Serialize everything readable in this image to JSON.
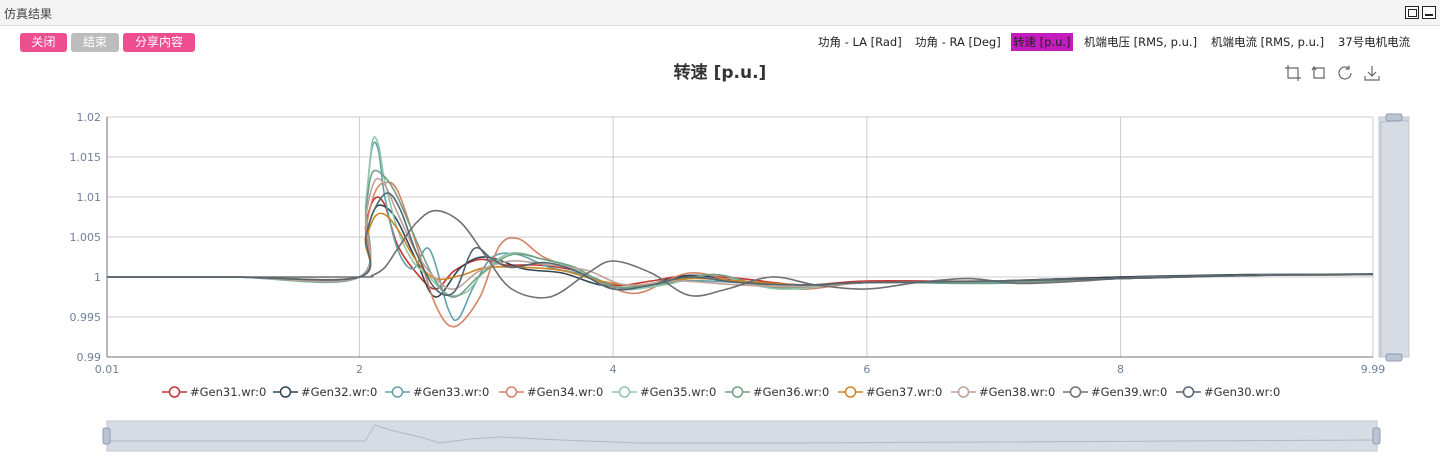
{
  "window": {
    "title": "仿真结果"
  },
  "buttons": {
    "close": "关闭",
    "end": "结束",
    "share": "分享内容"
  },
  "tabs": [
    {
      "label": "功角 - LA [Rad]"
    },
    {
      "label": "功角 - RA [Deg]"
    },
    {
      "label": "转速 [p.u.]",
      "active": true
    },
    {
      "label": "机端电压 [RMS, p.u.]"
    },
    {
      "label": "机端电流 [RMS, p.u.]"
    },
    {
      "label": "37号电机电流"
    }
  ],
  "toolbox": {
    "icons": [
      "zoom-icon",
      "zoom-reset-icon",
      "restore-icon",
      "save-image-icon"
    ]
  },
  "colors": {
    "accent": "#ee4d8f",
    "tab_active": "#c41dbd",
    "disabled": "#bdbdbd"
  },
  "chart_data": {
    "type": "line",
    "title": "转速 [p.u.]",
    "xlim": [
      0.01,
      9.99
    ],
    "ylim": [
      0.99,
      1.02
    ],
    "x_tick_labels": [
      "0.01",
      "2",
      "4",
      "6",
      "8",
      "9.99"
    ],
    "y_tick_labels": [
      "1.02",
      "1.015",
      "1.01",
      "1.005",
      "1",
      "0.995",
      "0.99"
    ],
    "grid": true,
    "legend_position": "bottom",
    "series": [
      {
        "name": "#Gen31.wr:0",
        "color": "#c23531",
        "x": [
          0.01,
          1.0,
          2.0,
          2.05,
          2.12,
          2.2,
          2.3,
          2.45,
          2.6,
          2.75,
          2.95,
          3.15,
          3.4,
          3.7,
          4.0,
          4.3,
          4.6,
          5.0,
          5.5,
          6.0,
          7.0,
          8.0,
          9.0,
          9.99
        ],
        "y": [
          1,
          1,
          1,
          1.0065,
          1.0098,
          1.009,
          1.004,
          1.0005,
          0.9985,
          1.0008,
          1.0022,
          1.0015,
          1.0015,
          1.0008,
          0.999,
          0.9995,
          1.0002,
          0.9998,
          0.999,
          0.9995,
          0.9995,
          1.0,
          1.0002,
          1.0003
        ]
      },
      {
        "name": "#Gen32.wr:0",
        "color": "#2f4554",
        "x": [
          0.01,
          1.0,
          2.0,
          2.05,
          2.12,
          2.2,
          2.3,
          2.45,
          2.6,
          2.8,
          3.0,
          3.3,
          3.6,
          3.9,
          4.2,
          4.6,
          5.0,
          5.5,
          6.0,
          7.0,
          8.0,
          9.0,
          9.99
        ],
        "y": [
          1,
          1,
          1,
          1.005,
          1.0085,
          1.0088,
          1.007,
          1.002,
          0.9975,
          1.0012,
          1.0025,
          1.001,
          1.0005,
          0.999,
          0.9988,
          1.0002,
          0.9995,
          0.999,
          0.9993,
          0.9995,
          1.0,
          1.0003,
          1.0003
        ]
      },
      {
        "name": "#Gen33.wr:0",
        "color": "#61a0a8",
        "x": [
          0.01,
          1.0,
          2.0,
          2.05,
          2.1,
          2.15,
          2.2,
          2.3,
          2.42,
          2.55,
          2.7,
          2.78,
          2.9,
          3.05,
          3.25,
          3.5,
          3.8,
          4.1,
          4.5,
          5.0,
          5.5,
          6.0,
          7.0,
          8.0,
          9.0,
          9.99
        ],
        "y": [
          1,
          1,
          1,
          1.009,
          1.0162,
          1.0158,
          1.01,
          1.0035,
          1.001,
          1.0035,
          0.996,
          0.9948,
          0.9988,
          1.0025,
          1.0028,
          1.0012,
          1.0002,
          0.9985,
          0.9995,
          0.9993,
          0.9985,
          0.9993,
          0.9992,
          0.9998,
          1.0002,
          1.0003
        ]
      },
      {
        "name": "#Gen34.wr:0",
        "color": "#d48265",
        "x": [
          0.01,
          1.0,
          2.0,
          2.05,
          2.12,
          2.2,
          2.3,
          2.45,
          2.6,
          2.75,
          2.95,
          3.1,
          3.25,
          3.45,
          3.7,
          3.95,
          4.2,
          4.6,
          5.0,
          5.5,
          6.0,
          7.0,
          8.0,
          9.0,
          9.99
        ],
        "y": [
          1,
          1,
          1,
          1.006,
          1.0105,
          1.0118,
          1.0108,
          1.004,
          0.9965,
          0.9938,
          0.9975,
          1.0038,
          1.0048,
          1.0025,
          1.001,
          0.999,
          0.998,
          1.0005,
          0.9993,
          0.9985,
          0.9993,
          0.9993,
          0.9998,
          1.0002,
          1.0003
        ]
      },
      {
        "name": "#Gen35.wr:0",
        "color": "#91c7ae",
        "x": [
          0.01,
          1.0,
          2.0,
          2.05,
          2.1,
          2.15,
          2.2,
          2.3,
          2.42,
          2.55,
          2.7,
          2.85,
          3.0,
          3.2,
          3.45,
          3.7,
          4.0,
          4.4,
          4.8,
          5.3,
          6.0,
          7.0,
          8.0,
          9.0,
          9.99
        ],
        "y": [
          1,
          1,
          1,
          1.0085,
          1.0168,
          1.0165,
          1.012,
          1.006,
          1.002,
          1.0,
          0.9978,
          0.9982,
          1.001,
          1.003,
          1.0022,
          1.001,
          0.9985,
          0.999,
          1.0003,
          0.9985,
          0.9993,
          0.9993,
          0.9998,
          1.0002,
          1.0003
        ]
      },
      {
        "name": "#Gen36.wr:0",
        "color": "#749f83",
        "x": [
          0.01,
          1.0,
          2.0,
          2.05,
          2.1,
          2.2,
          2.3,
          2.45,
          2.6,
          2.75,
          2.95,
          3.2,
          3.45,
          3.7,
          4.0,
          4.4,
          4.8,
          5.3,
          6.0,
          7.0,
          8.0,
          9.0,
          9.99
        ],
        "y": [
          1,
          1,
          1,
          1.008,
          1.013,
          1.0125,
          1.01,
          1.0045,
          0.9995,
          0.9975,
          1.0002,
          1.0028,
          1.0022,
          1.0012,
          0.9988,
          0.9992,
          1.0003,
          0.9987,
          0.9993,
          0.9993,
          0.9998,
          1.0002,
          1.0003
        ]
      },
      {
        "name": "#Gen37.wr:0",
        "color": "#ca8622",
        "x": [
          0.01,
          1.0,
          2.0,
          2.05,
          2.12,
          2.2,
          2.3,
          2.45,
          2.6,
          2.8,
          3.0,
          3.3,
          3.6,
          3.9,
          4.2,
          4.6,
          5.0,
          5.5,
          6.0,
          7.0,
          8.0,
          9.0,
          9.99
        ],
        "y": [
          1,
          1,
          1,
          1.0045,
          1.0075,
          1.0078,
          1.006,
          1.002,
          0.9998,
          1.0002,
          1.0012,
          1.0012,
          1.0008,
          0.9995,
          0.999,
          0.9998,
          0.9995,
          0.999,
          0.9993,
          0.9995,
          0.9998,
          1.0002,
          1.0003
        ]
      },
      {
        "name": "#Gen38.wr:0",
        "color": "#bda29a",
        "x": [
          0.01,
          1.0,
          2.0,
          2.05,
          2.12,
          2.2,
          2.3,
          2.45,
          2.6,
          2.75,
          2.95,
          3.2,
          3.5,
          3.8,
          4.1,
          4.5,
          5.0,
          5.5,
          6.0,
          7.0,
          8.0,
          9.0,
          9.99
        ],
        "y": [
          1,
          1,
          1,
          1.0075,
          1.012,
          1.0115,
          1.008,
          1.003,
          0.9998,
          0.9985,
          1.0008,
          1.002,
          1.0015,
          1.0008,
          0.999,
          0.9995,
          0.999,
          0.9988,
          0.9993,
          0.9995,
          0.9998,
          1.0002,
          1.0003
        ]
      },
      {
        "name": "#Gen39.wr:0",
        "color": "#6e7074",
        "x": [
          0.01,
          1.0,
          2.0,
          2.1,
          2.2,
          2.3,
          2.45,
          2.6,
          2.8,
          3.0,
          3.2,
          3.5,
          3.8,
          4.0,
          4.3,
          4.6,
          4.9,
          5.25,
          5.6,
          6.0,
          6.4,
          6.8,
          7.2,
          7.7,
          8.2,
          9.0,
          9.99
        ],
        "y": [
          1,
          1,
          1,
          1.0002,
          1.0012,
          1.0035,
          1.0068,
          1.0083,
          1.0068,
          1.0025,
          0.9985,
          0.9975,
          1.0005,
          1.002,
          1.0005,
          0.9977,
          0.9985,
          1.0,
          0.999,
          0.9985,
          0.9993,
          0.9998,
          0.9992,
          0.9995,
          1.0,
          1.0002,
          1.0003
        ]
      },
      {
        "name": "#Gen30.wr:0",
        "color": "#546570",
        "x": [
          0.01,
          1.0,
          2.0,
          2.05,
          2.12,
          2.22,
          2.32,
          2.45,
          2.6,
          2.75,
          2.9,
          3.05,
          3.2,
          3.45,
          3.7,
          4.0,
          4.3,
          4.6,
          5.0,
          5.5,
          6.0,
          7.0,
          8.0,
          9.0,
          9.99
        ],
        "y": [
          1,
          1,
          1,
          1.005,
          1.0085,
          1.0105,
          1.0085,
          1.003,
          0.9985,
          0.9982,
          1.0035,
          1.0022,
          1.0012,
          1.0018,
          1.0008,
          0.9985,
          0.999,
          1.0,
          0.9993,
          0.999,
          0.9993,
          0.9995,
          0.9998,
          1.0002,
          1.0004
        ]
      }
    ]
  }
}
